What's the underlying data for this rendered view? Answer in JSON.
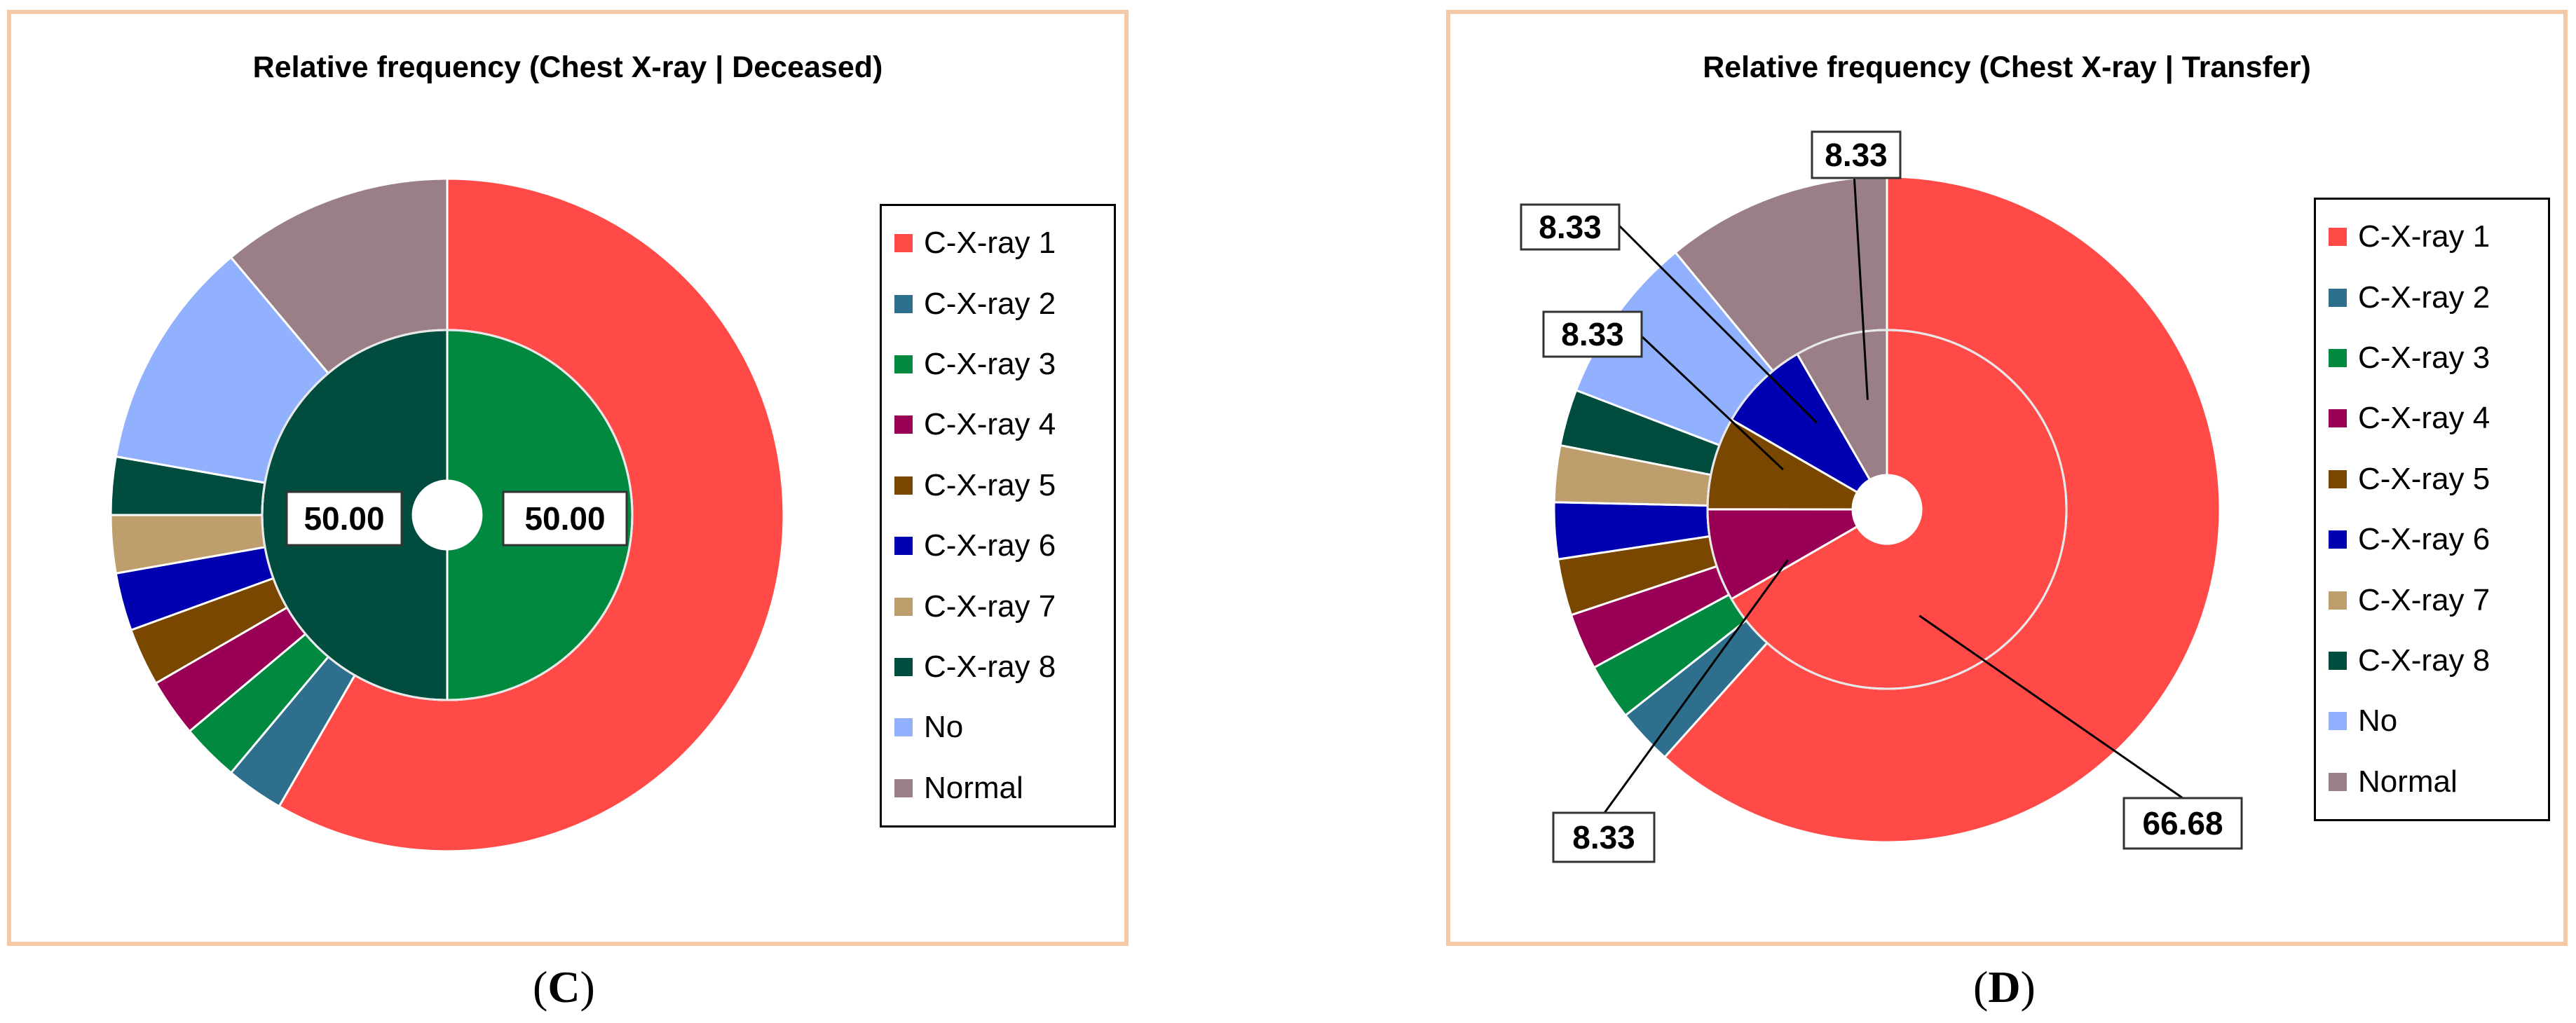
{
  "colors": {
    "C-X-ray 1": "#ff4a47",
    "C-X-ray 2": "#2e6f8e",
    "C-X-ray 3": "#00893f",
    "C-X-ray 4": "#990055",
    "C-X-ray 5": "#7a4700",
    "C-X-ray 6": "#0000b0",
    "C-X-ray 7": "#bf9e6e",
    "C-X-ray 8": "#004d40",
    "No": "#91b1ff",
    "Normal": "#9a7f86",
    "border": "#f4c9a8"
  },
  "legend": [
    "C-X-ray 1",
    "C-X-ray 2",
    "C-X-ray 3",
    "C-X-ray 4",
    "C-X-ray 5",
    "C-X-ray 6",
    "C-X-ray 7",
    "C-X-ray 8",
    "No",
    "Normal"
  ],
  "chart_data": [
    {
      "type": "pie",
      "variant": "nested-donut",
      "panel": "C",
      "title": "Relative frequency (Chest X-ray | Deceased)",
      "caption": {
        "open": "(",
        "letter": "C",
        "close": ")"
      },
      "legend_position": "right",
      "start_angle_deg": 0,
      "direction": "clockwise",
      "outer_ring": {
        "categories": [
          "C-X-ray 1",
          "C-X-ray 2",
          "C-X-ray 3",
          "C-X-ray 4",
          "C-X-ray 5",
          "C-X-ray 6",
          "C-X-ray 7",
          "C-X-ray 8",
          "No",
          "Normal"
        ],
        "values": [
          58.33,
          2.78,
          2.78,
          2.78,
          2.78,
          2.78,
          2.78,
          2.78,
          11.11,
          11.11
        ]
      },
      "inner_ring": {
        "categories": [
          "C-X-ray 3",
          "C-X-ray 8"
        ],
        "values": [
          50.0,
          50.0
        ]
      },
      "data_labels": [
        {
          "text": "50.00",
          "category": "C-X-ray 3"
        },
        {
          "text": "50.00",
          "category": "C-X-ray 8"
        }
      ]
    },
    {
      "type": "pie",
      "variant": "nested-donut",
      "panel": "D",
      "title": "Relative frequency (Chest X-ray | Transfer)",
      "caption": {
        "open": "(",
        "letter": "D",
        "close": ")"
      },
      "legend_position": "right",
      "start_angle_deg": 0,
      "direction": "clockwise",
      "outer_ring": {
        "categories": [
          "C-X-ray 1",
          "C-X-ray 2",
          "C-X-ray 3",
          "C-X-ray 4",
          "C-X-ray 5",
          "C-X-ray 6",
          "C-X-ray 7",
          "C-X-ray 8",
          "No",
          "Normal"
        ],
        "values": [
          62.5,
          2.78,
          2.78,
          2.78,
          2.78,
          2.78,
          2.78,
          2.78,
          8.33,
          11.11
        ]
      },
      "inner_ring": {
        "categories": [
          "C-X-ray 1",
          "C-X-ray 4",
          "C-X-ray 5",
          "C-X-ray 6",
          "Normal"
        ],
        "values": [
          66.68,
          8.33,
          8.33,
          8.33,
          8.33
        ]
      },
      "data_labels": [
        {
          "text": "66.68",
          "category": "C-X-ray 1"
        },
        {
          "text": "8.33",
          "category": "C-X-ray 4"
        },
        {
          "text": "8.33",
          "category": "C-X-ray 5"
        },
        {
          "text": "8.33",
          "category": "C-X-ray 6"
        },
        {
          "text": "8.33",
          "category": "Normal"
        }
      ]
    }
  ]
}
